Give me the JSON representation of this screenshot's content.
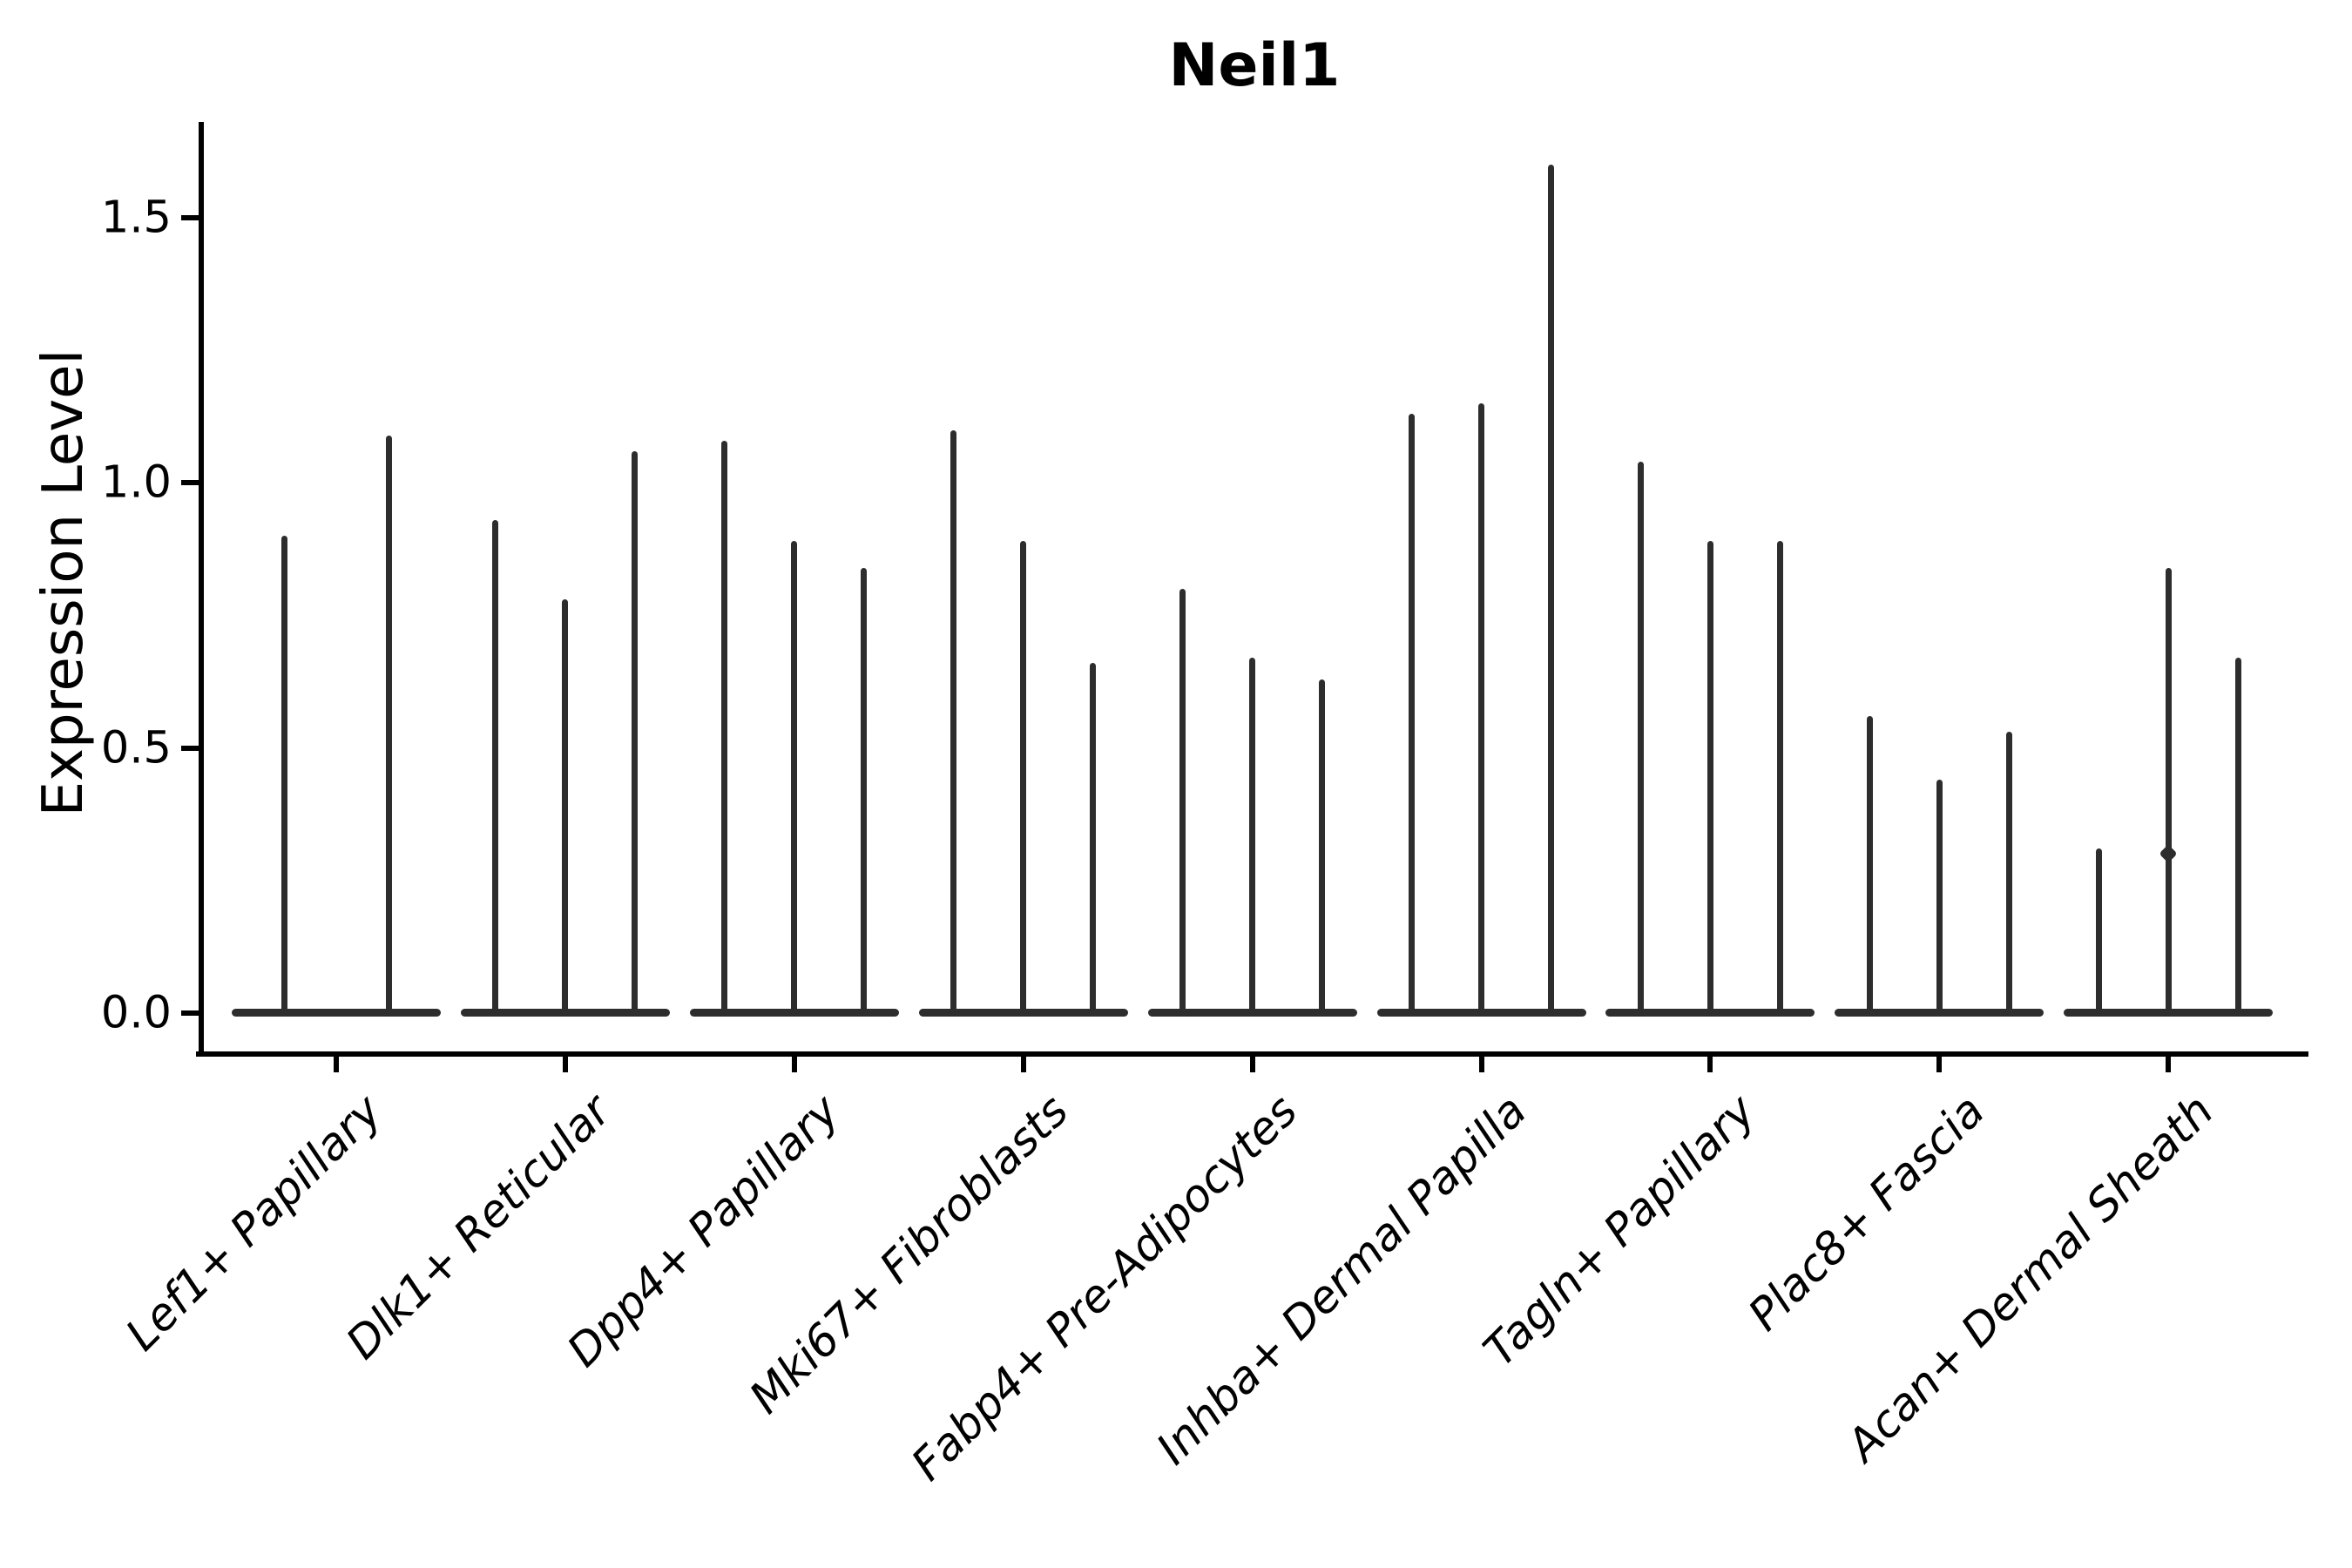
{
  "title": "Neil1",
  "y_axis": {
    "label": "Expression Level",
    "tick_labels": [
      "0.0",
      "0.5",
      "1.0",
      "1.5"
    ],
    "tick_values": [
      0.0,
      0.5,
      1.0,
      1.5
    ]
  },
  "chart_data": {
    "type": "violin",
    "title": "Neil1",
    "xlabel": "",
    "ylabel": "Expression Level",
    "ylim": [
      0,
      1.68
    ],
    "yticks": [
      0.0,
      0.5,
      1.0,
      1.5
    ],
    "grid": false,
    "legend": false,
    "note": "Each category shows narrow collapsed violins (spikes) rising from a flat base at expression 0; values below are the peak expression level reached by each violin within the category.",
    "categories": [
      {
        "label": "Lef1+ Papillary",
        "violin_peaks": [
          0.9,
          1.09
        ]
      },
      {
        "label": "Dlk1+ Reticular",
        "violin_peaks": [
          0.93,
          0.78,
          1.06
        ]
      },
      {
        "label": "Dpp4+ Papillary",
        "violin_peaks": [
          1.08,
          0.89,
          0.84
        ]
      },
      {
        "label": "Mki67+ Fibroblasts",
        "violin_peaks": [
          1.1,
          0.89,
          0.66
        ]
      },
      {
        "label": "Fabp4+ Pre-Adipocytes",
        "violin_peaks": [
          0.8,
          0.67,
          0.63
        ]
      },
      {
        "label": "Inhba+ Dermal Papilla",
        "violin_peaks": [
          1.13,
          1.15,
          1.6
        ]
      },
      {
        "label": "Tagln+ Papillary",
        "violin_peaks": [
          1.04,
          0.89,
          0.89
        ]
      },
      {
        "label": "Plac8+ Fascia",
        "violin_peaks": [
          0.56,
          0.44,
          0.53
        ]
      },
      {
        "label": "Acan+ Dermal Sheath",
        "violin_peaks": [
          0.31,
          0.84,
          0.67
        ]
      }
    ],
    "outlier_points": [
      {
        "category_index": 8,
        "violin_index": 1,
        "value": 0.3
      }
    ],
    "ink_color": "#2d2d2d"
  }
}
